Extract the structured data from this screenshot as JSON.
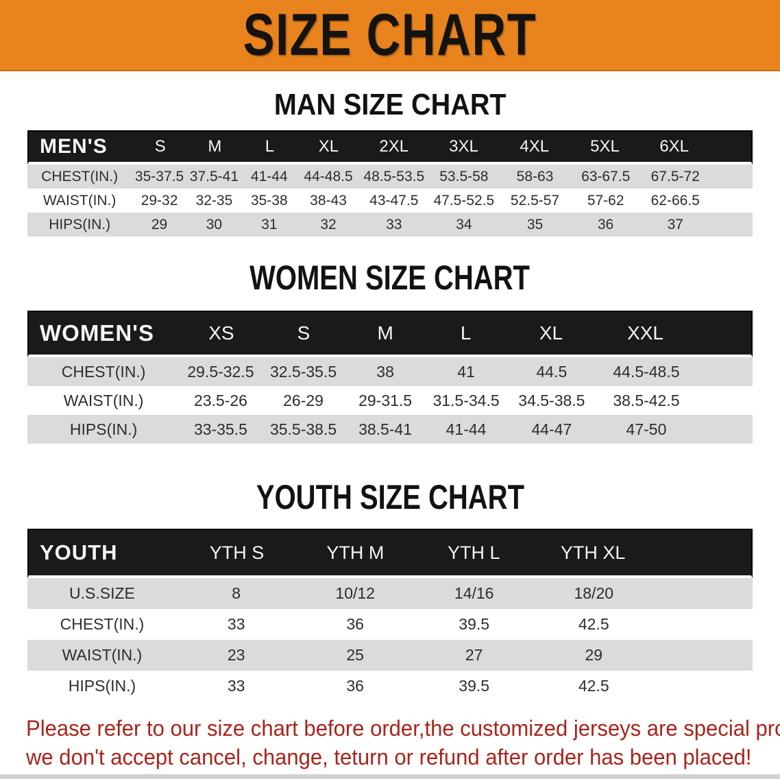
{
  "banner": {
    "title": "SIZE CHART"
  },
  "colors": {
    "banner_bg": "#E8831E",
    "header_bar": "#1A1A1A",
    "row_stripe": "#DBDBDB",
    "footer_text": "#A8241C"
  },
  "sections": [
    {
      "heading": "MAN SIZE CHART",
      "label": "MEN'S",
      "columns": [
        "S",
        "M",
        "L",
        "XL",
        "2XL",
        "3XL",
        "4XL",
        "5XL",
        "6XL"
      ],
      "rows": [
        {
          "label": "CHEST(IN.)",
          "values": [
            "35-37.5",
            "37.5-41",
            "41-44",
            "44-48.5",
            "48.5-53.5",
            "53.5-58",
            "58-63",
            "63-67.5",
            "67.5-72"
          ]
        },
        {
          "label": "WAIST(IN.)",
          "values": [
            "29-32",
            "32-35",
            "35-38",
            "38-43",
            "43-47.5",
            "47.5-52.5",
            "52.5-57",
            "57-62",
            "62-66.5"
          ]
        },
        {
          "label": "HIPS(IN.)",
          "values": [
            "29",
            "30",
            "31",
            "32",
            "33",
            "34",
            "35",
            "36",
            "37"
          ]
        }
      ]
    },
    {
      "heading": "WOMEN SIZE CHART",
      "label": "WOMEN'S",
      "columns": [
        "XS",
        "S",
        "M",
        "L",
        "XL",
        "XXL"
      ],
      "rows": [
        {
          "label": "CHEST(IN.)",
          "values": [
            "29.5-32.5",
            "32.5-35.5",
            "38",
            "41",
            "44.5",
            "44.5-48.5"
          ]
        },
        {
          "label": "WAIST(IN.)",
          "values": [
            "23.5-26",
            "26-29",
            "29-31.5",
            "31.5-34.5",
            "34.5-38.5",
            "38.5-42.5"
          ]
        },
        {
          "label": "HIPS(IN.)",
          "values": [
            "33-35.5",
            "35.5-38.5",
            "38.5-41",
            "41-44",
            "44-47",
            "47-50"
          ]
        }
      ]
    },
    {
      "heading": "YOUTH SIZE CHART",
      "label": "YOUTH",
      "columns": [
        "YTH S",
        "YTH M",
        "YTH L",
        "YTH XL"
      ],
      "rows": [
        {
          "label": "U.S.SIZE",
          "values": [
            "8",
            "10/12",
            "14/16",
            "18/20"
          ]
        },
        {
          "label": "CHEST(IN.)",
          "values": [
            "33",
            "36",
            "39.5",
            "42.5"
          ]
        },
        {
          "label": "WAIST(IN.)",
          "values": [
            "23",
            "25",
            "27",
            "29"
          ]
        },
        {
          "label": "HIPS(IN.)",
          "values": [
            "33",
            "36",
            "39.5",
            "42.5"
          ]
        }
      ]
    }
  ],
  "footer": {
    "line1": "Please refer to our size chart before order,the customized jerseys are special products,",
    "line2": "we don't accept cancel, change, teturn or refund after order has been placed!"
  }
}
